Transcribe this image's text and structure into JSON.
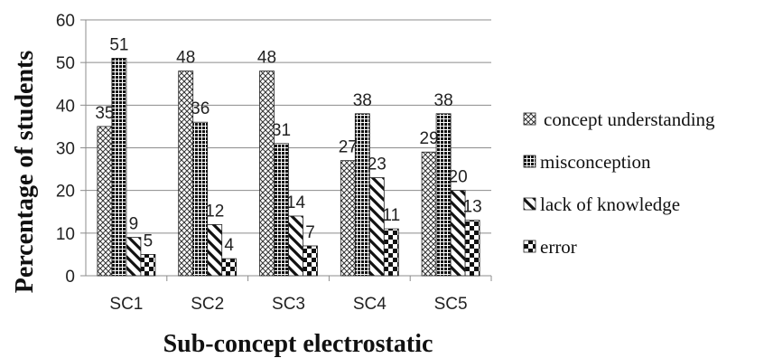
{
  "chart_data": {
    "type": "bar",
    "title": "",
    "xlabel": "Sub-concept electrostatic",
    "ylabel": "Percentage  of students",
    "categories": [
      "SC1",
      "SC2",
      "SC3",
      "SC4",
      "SC5"
    ],
    "ylim": [
      0,
      60
    ],
    "yticks": [
      0,
      10,
      20,
      30,
      40,
      50,
      60
    ],
    "grid": true,
    "legend_position": "right",
    "series": [
      {
        "name": "concept understanding",
        "values": [
          35,
          48,
          48,
          27,
          29
        ]
      },
      {
        "name": "misconception",
        "values": [
          51,
          36,
          31,
          38,
          38
        ]
      },
      {
        "name": "lack of knowledge",
        "values": [
          9,
          12,
          14,
          23,
          20
        ]
      },
      {
        "name": "error",
        "values": [
          5,
          4,
          7,
          11,
          13
        ]
      }
    ]
  }
}
